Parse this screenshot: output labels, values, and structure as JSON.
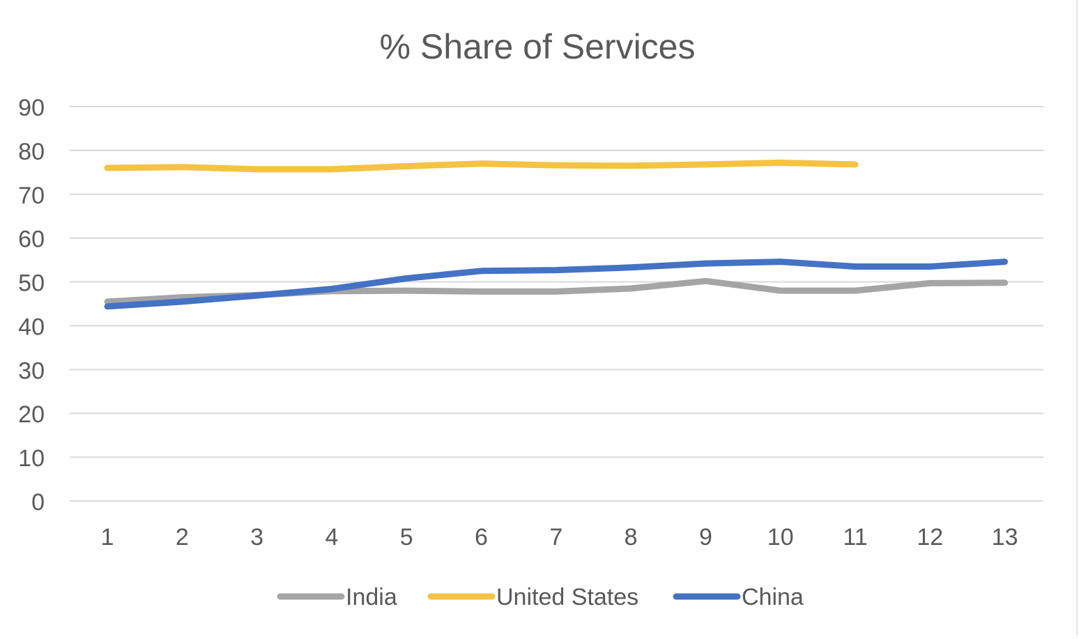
{
  "chart_data": {
    "type": "line",
    "title": "% Share of Services",
    "xlabel": "",
    "ylabel": "",
    "x": [
      1,
      2,
      3,
      4,
      5,
      6,
      7,
      8,
      9,
      10,
      11,
      12,
      13
    ],
    "xticks": [
      "1",
      "2",
      "3",
      "4",
      "5",
      "6",
      "7",
      "8",
      "9",
      "10",
      "11",
      "12",
      "13"
    ],
    "yticks": [
      "0",
      "10",
      "20",
      "30",
      "40",
      "50",
      "60",
      "70",
      "80",
      "90"
    ],
    "ylim": [
      0,
      90
    ],
    "grid": true,
    "legend_position": "bottom",
    "series": [
      {
        "name": "India",
        "color": "#a5a5a5",
        "values": [
          45.5,
          46.5,
          47.0,
          47.9,
          48.0,
          47.8,
          47.8,
          48.5,
          50.2,
          48.0,
          48.0,
          49.7,
          49.8
        ]
      },
      {
        "name": "United States",
        "color": "#f5c342",
        "values": [
          76.0,
          76.2,
          75.7,
          75.7,
          76.4,
          77.0,
          76.6,
          76.5,
          76.8,
          77.2,
          76.8,
          null,
          null
        ]
      },
      {
        "name": "China",
        "color": "#4472c4",
        "values": [
          44.4,
          45.5,
          46.9,
          48.4,
          50.8,
          52.5,
          52.7,
          53.3,
          54.2,
          54.6,
          53.5,
          53.5,
          54.6
        ]
      }
    ]
  }
}
